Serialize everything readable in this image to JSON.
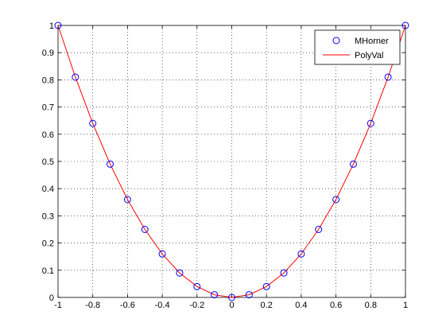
{
  "chart_data": {
    "type": "line",
    "title": "",
    "xlabel": "",
    "ylabel": "",
    "xlim": [
      -1,
      1
    ],
    "ylim": [
      0,
      1
    ],
    "grid": true,
    "legend_position": "top-right",
    "x_ticks": [
      -1,
      -0.8,
      -0.6,
      -0.4,
      -0.2,
      0,
      0.2,
      0.4,
      0.6,
      0.8,
      1
    ],
    "x_tick_labels": [
      "-1",
      "-0.8",
      "-0.6",
      "-0.4",
      "-0.2",
      "0",
      "0.2",
      "0.4",
      "0.6",
      "0.8",
      "1"
    ],
    "y_ticks": [
      0,
      0.1,
      0.2,
      0.3,
      0.4,
      0.5,
      0.6,
      0.7,
      0.8,
      0.9,
      1
    ],
    "y_tick_labels": [
      "0",
      "0.1",
      "0.2",
      "0.3",
      "0.4",
      "0.5",
      "0.6",
      "0.7",
      "0.8",
      "0.9",
      "1"
    ],
    "series": [
      {
        "name": "MHorner",
        "style": "markers",
        "marker": "circle",
        "color": "#0000ff",
        "x": [
          -1,
          -0.9,
          -0.8,
          -0.7,
          -0.6,
          -0.5,
          -0.4,
          -0.3,
          -0.2,
          -0.1,
          0,
          0.1,
          0.2,
          0.3,
          0.4,
          0.5,
          0.6,
          0.7,
          0.8,
          0.9,
          1
        ],
        "y": [
          1,
          0.81,
          0.64,
          0.49,
          0.36,
          0.25,
          0.16,
          0.09,
          0.04,
          0.01,
          0,
          0.01,
          0.04,
          0.09,
          0.16,
          0.25,
          0.36,
          0.49,
          0.64,
          0.81,
          1
        ]
      },
      {
        "name": "PolyVal",
        "style": "line",
        "color": "#ff0000",
        "x": [
          -1,
          -0.9,
          -0.8,
          -0.7,
          -0.6,
          -0.5,
          -0.4,
          -0.3,
          -0.2,
          -0.1,
          0,
          0.1,
          0.2,
          0.3,
          0.4,
          0.5,
          0.6,
          0.7,
          0.8,
          0.9,
          1
        ],
        "y": [
          1,
          0.81,
          0.64,
          0.49,
          0.36,
          0.25,
          0.16,
          0.09,
          0.04,
          0.01,
          0,
          0.01,
          0.04,
          0.09,
          0.16,
          0.25,
          0.36,
          0.49,
          0.64,
          0.81,
          1
        ]
      }
    ]
  }
}
